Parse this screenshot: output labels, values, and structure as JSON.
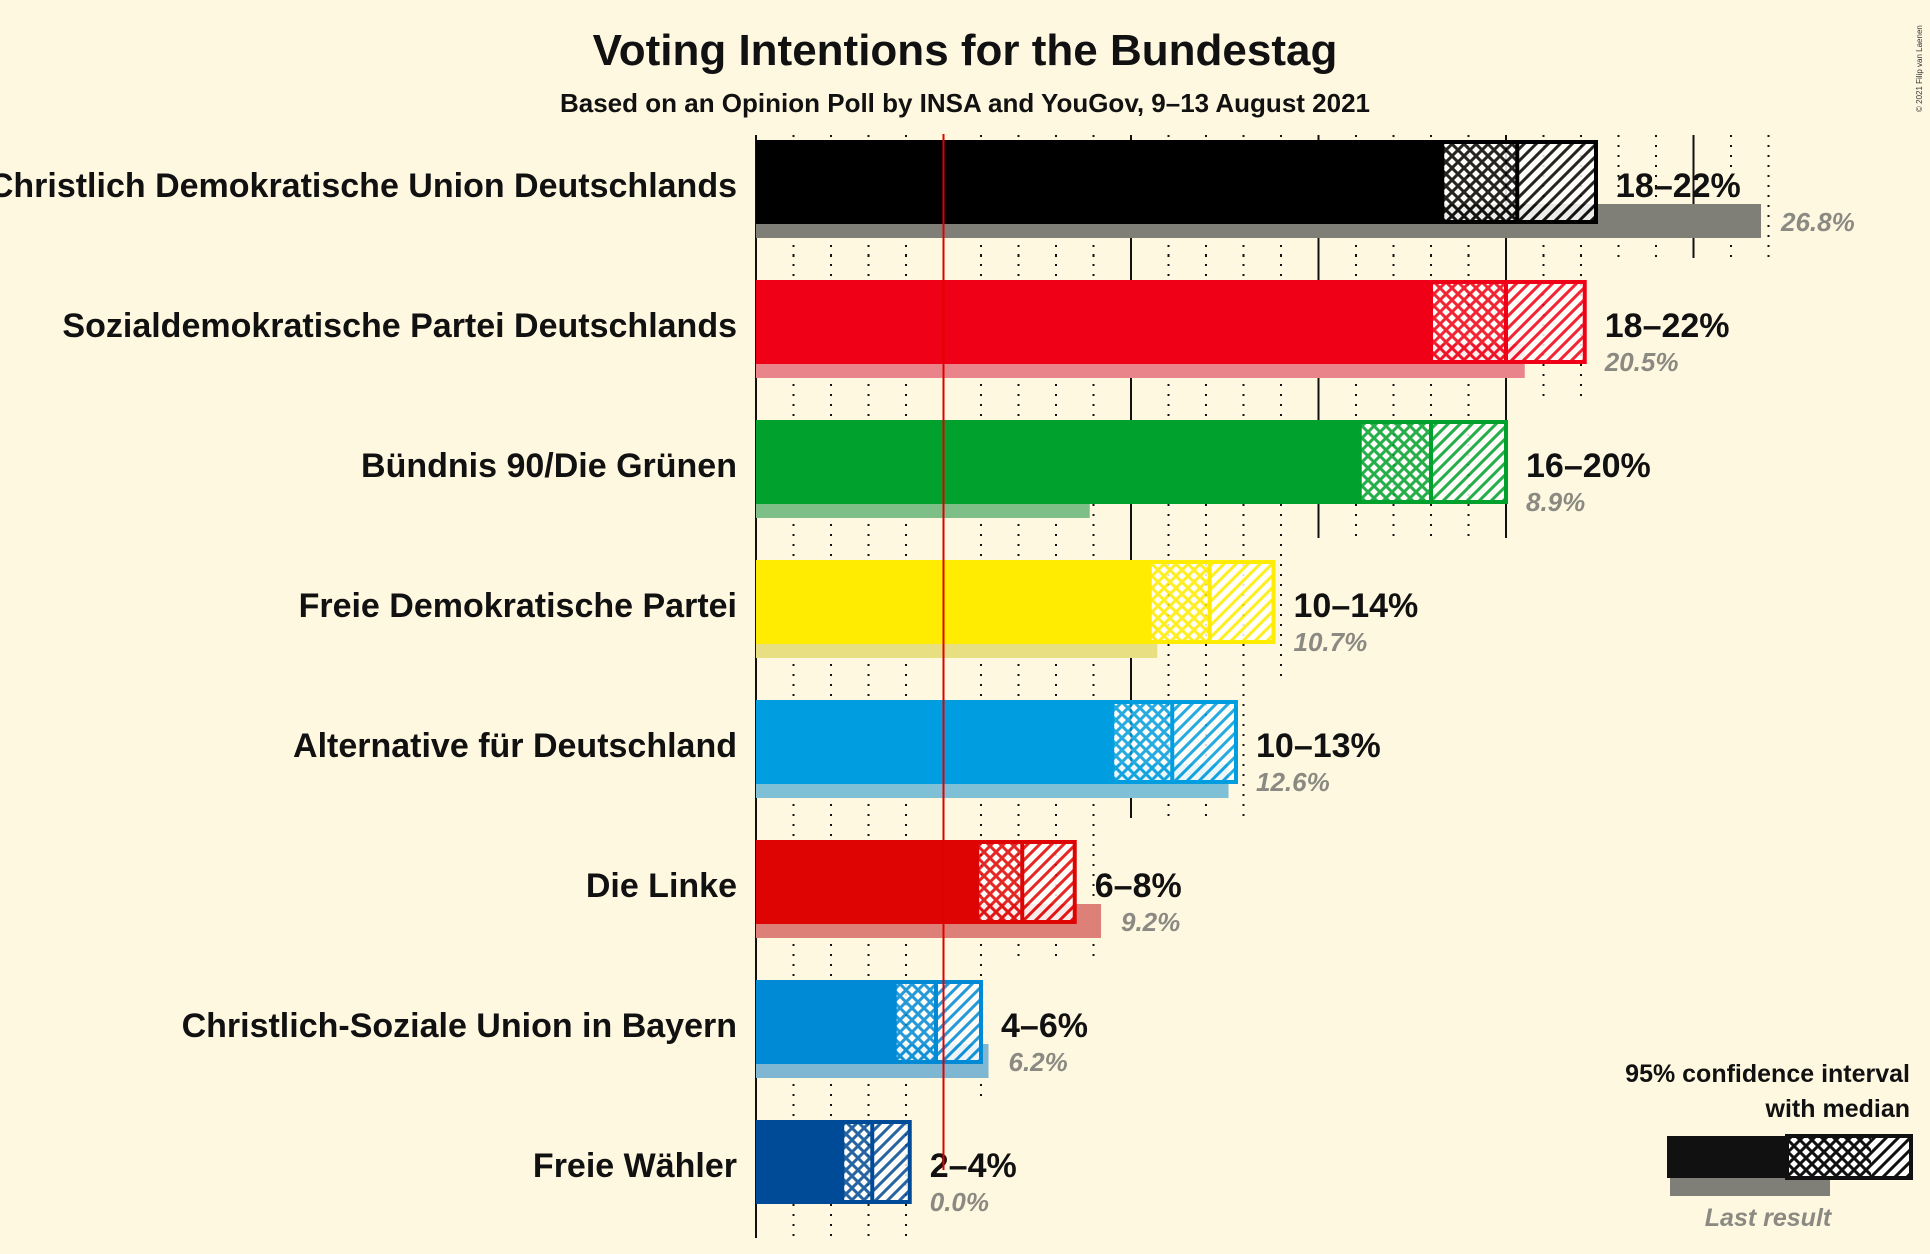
{
  "title": "Voting Intentions for the Bundestag",
  "subtitle": "Based on an Opinion Poll by INSA and YouGov, 9–13 August 2021",
  "credit": "© 2021 Filip van Laenen",
  "legend": {
    "line1": "95% confidence interval",
    "line2": "with median",
    "last_result": "Last result"
  },
  "chart_data": {
    "type": "bar",
    "orientation": "horizontal",
    "unit": "%",
    "xlim": [
      0,
      30
    ],
    "threshold": 5,
    "grid": true,
    "legend_placement": "bottom-right",
    "parties": [
      {
        "name": "Christlich Demokratische Union Deutschlands",
        "color": "#000000",
        "last_color": "#7f7f77",
        "ci_low": 18.3,
        "median": 20.3,
        "ci_high": 22.4,
        "range_label": "18–22%",
        "last": 26.8,
        "last_label": "26.8%"
      },
      {
        "name": "Sozialdemokratische Partei Deutschlands",
        "color": "#f00017",
        "last_color": "#e8848a",
        "ci_low": 18.0,
        "median": 20.0,
        "ci_high": 22.1,
        "range_label": "18–22%",
        "last": 20.5,
        "last_label": "20.5%"
      },
      {
        "name": "Bündnis 90/Die Grünen",
        "color": "#00a22d",
        "last_color": "#7ebf88",
        "ci_low": 16.1,
        "median": 18.0,
        "ci_high": 20.0,
        "range_label": "16–20%",
        "last": 8.9,
        "last_label": "8.9%"
      },
      {
        "name": "Freie Demokratische Partei",
        "color": "#ffec00",
        "last_color": "#e8de82",
        "ci_low": 10.5,
        "median": 12.1,
        "ci_high": 13.8,
        "range_label": "10–14%",
        "last": 10.7,
        "last_label": "10.7%"
      },
      {
        "name": "Alternative für Deutschland",
        "color": "#009ee0",
        "last_color": "#7fc0d6",
        "ci_low": 9.5,
        "median": 11.1,
        "ci_high": 12.8,
        "range_label": "10–13%",
        "last": 12.6,
        "last_label": "12.6%"
      },
      {
        "name": "Die Linke",
        "color": "#df0404",
        "last_color": "#dd8078",
        "ci_low": 5.9,
        "median": 7.1,
        "ci_high": 8.5,
        "range_label": "6–8%",
        "last": 9.2,
        "last_label": "9.2%"
      },
      {
        "name": "Christlich-Soziale Union in Bayern",
        "color": "#008ad6",
        "last_color": "#7fb6d1",
        "ci_low": 3.7,
        "median": 4.8,
        "ci_high": 6.0,
        "range_label": "4–6%",
        "last": 6.2,
        "last_label": "6.2%"
      },
      {
        "name": "Freie Wähler",
        "color": "#004b97",
        "last_color": "#8a8a82",
        "ci_low": 2.3,
        "median": 3.1,
        "ci_high": 4.1,
        "range_label": "2–4%",
        "last": 0.0,
        "last_label": "0.0%"
      }
    ]
  }
}
